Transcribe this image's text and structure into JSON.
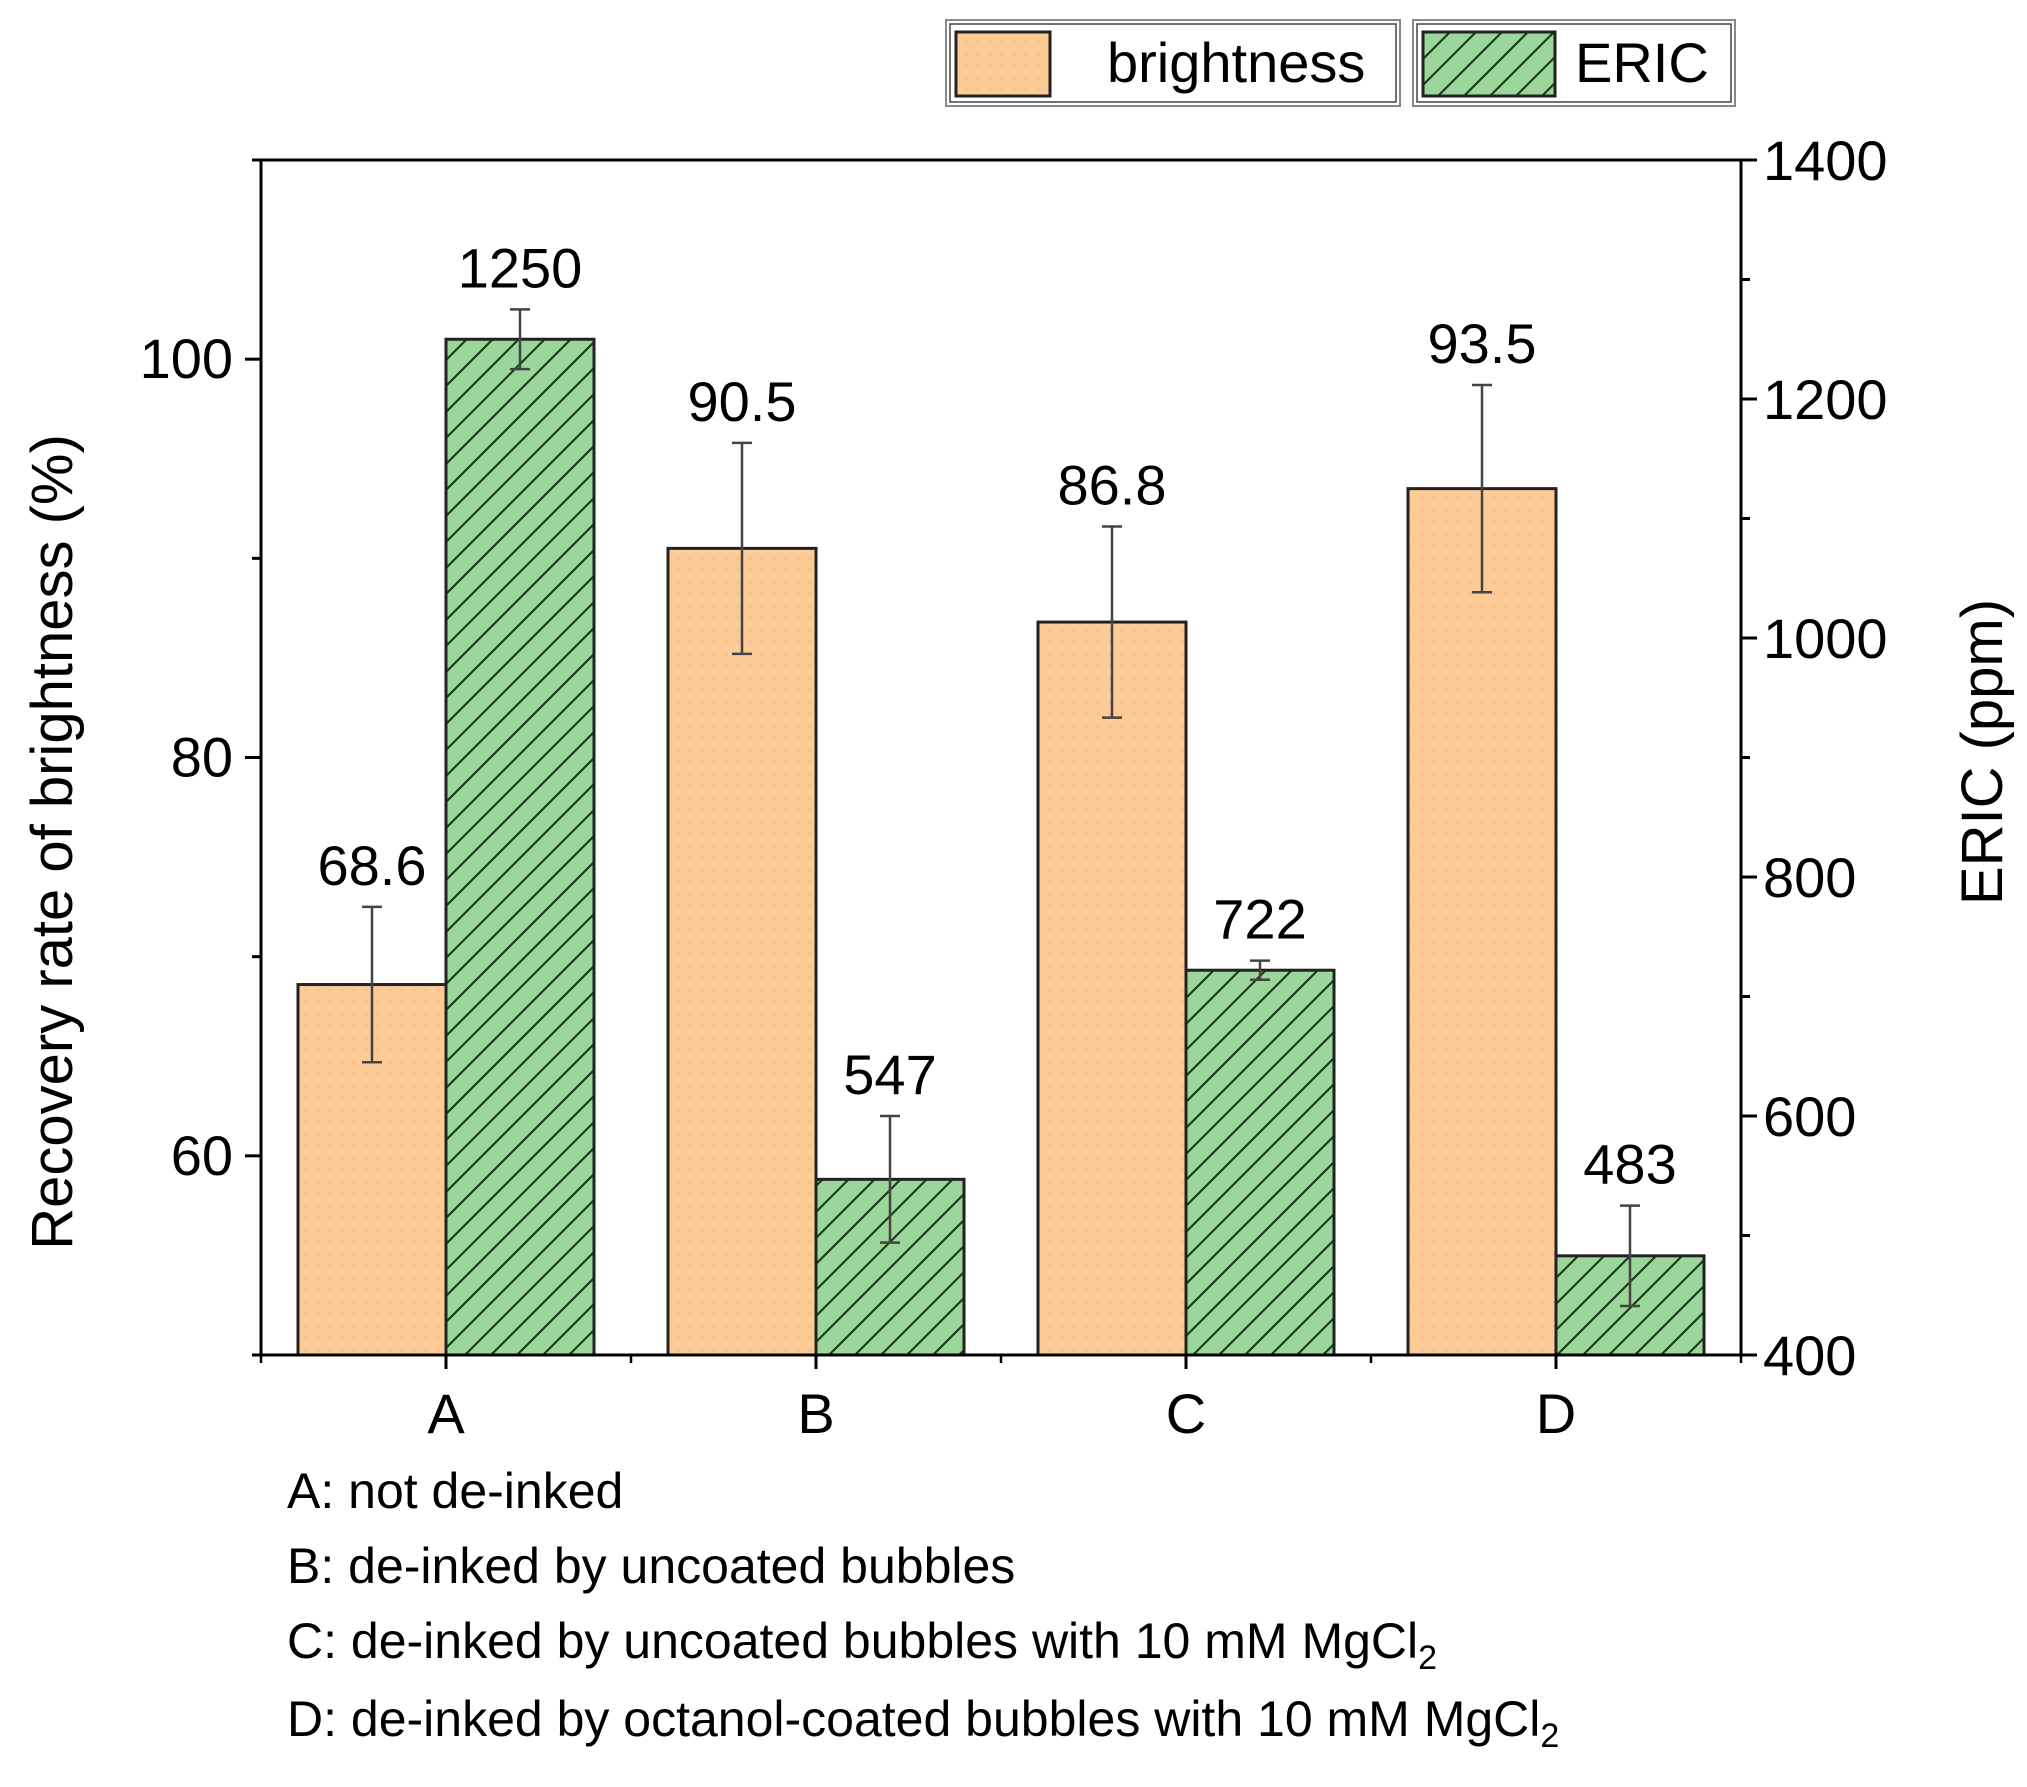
{
  "chart_data": {
    "type": "bar",
    "categories": [
      "A",
      "B",
      "C",
      "D"
    ],
    "y_left": {
      "label": "Recovery rate of brightness (%)",
      "min": 50,
      "max": 110,
      "ticks": [
        60,
        80,
        100
      ]
    },
    "y_right": {
      "label": "ERIC (ppm)",
      "min": 400,
      "max": 1400,
      "ticks": [
        400,
        600,
        800,
        1000,
        1200,
        1400
      ]
    },
    "series": [
      {
        "name": "brightness",
        "axis": "left",
        "values": [
          68.6,
          90.5,
          86.8,
          93.5
        ],
        "errors": [
          3.9,
          5.3,
          4.8,
          5.2
        ],
        "value_labels": [
          "68.6",
          "90.5",
          "86.8",
          "93.5"
        ],
        "color": "#fdcc96"
      },
      {
        "name": "ERIC",
        "axis": "right",
        "values": [
          1250,
          547,
          722,
          483
        ],
        "errors": [
          25,
          53,
          8,
          42
        ],
        "value_labels": [
          "1250",
          "547",
          "722",
          "483"
        ],
        "color": "#9bd79a"
      }
    ],
    "legend": {
      "position": "top-right"
    },
    "grid": false
  },
  "legend_labels": {
    "brightness": "brightness",
    "eric": "ERIC"
  },
  "captions": {
    "a": "A: not de-inked",
    "b": "B: de-inked by uncoated bubbles",
    "c_main": "C: de-inked by uncoated bubbles with 10 mM MgCl",
    "c_sub": "2",
    "d_main": "D: de-inked by octanol-coated bubbles with 10 mM MgCl",
    "d_sub": "2"
  }
}
